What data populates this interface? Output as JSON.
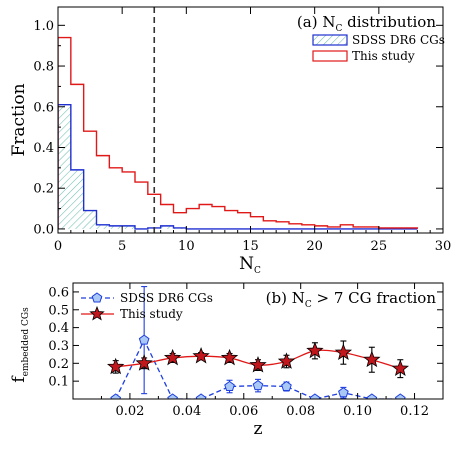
{
  "chart_data": [
    {
      "type": "bar",
      "panel_label": "(a)",
      "title": "N",
      "title_sub": "C",
      "title_rest": " distribution",
      "xlabel": "N",
      "xlabel_sub": "C",
      "ylabel": "Fraction",
      "xlim": [
        0,
        30
      ],
      "ylim": [
        -0.02,
        1.09
      ],
      "xticks": [
        0,
        5,
        10,
        15,
        20,
        25,
        30
      ],
      "yticks": [
        0.0,
        0.2,
        0.4,
        0.6,
        0.8,
        1.0
      ],
      "ytick_labels": [
        "0.0",
        "0.2",
        "0.4",
        "0.6",
        "0.8",
        "1.0"
      ],
      "vline": 7.5,
      "bin_edges": [
        0,
        1,
        2,
        3,
        4,
        5,
        6,
        7,
        8,
        9,
        10,
        11,
        12,
        13,
        14,
        15,
        16,
        17,
        18,
        19,
        20,
        21,
        22,
        23,
        24,
        25,
        26,
        27,
        28
      ],
      "series": [
        {
          "name": "SDSS DR6 CGs",
          "color": "#1f2fd0",
          "hatch_color": "#6fbfb0",
          "style": "hatched-step",
          "values": [
            0.61,
            0.29,
            0.09,
            0.02,
            0.015,
            0.015,
            0.0,
            0.005,
            0.015,
            0.005,
            0.0,
            0.0,
            0.0,
            0.0,
            0.0,
            0.0,
            0.0,
            0.0,
            0.0,
            0.0,
            0.0,
            0.0,
            0.0,
            0.0,
            0.0,
            0.0,
            0.0,
            0.0
          ]
        },
        {
          "name": "This study",
          "color": "#e01818",
          "style": "step",
          "values": [
            0.94,
            0.71,
            0.48,
            0.36,
            0.3,
            0.28,
            0.23,
            0.17,
            0.12,
            0.08,
            0.1,
            0.12,
            0.11,
            0.09,
            0.08,
            0.06,
            0.04,
            0.035,
            0.025,
            0.02,
            0.015,
            0.01,
            0.02,
            0.01,
            0.01,
            0.005,
            0.005,
            0.005
          ]
        }
      ]
    },
    {
      "type": "line",
      "panel_label": "(b)",
      "title": "N",
      "title_sub": "C",
      "title_rest": " > 7 CG fraction",
      "xlabel": "z",
      "ylabel": "f",
      "ylabel_sub": "embedded CGs",
      "xlim": [
        0.0,
        0.13
      ],
      "ylim": [
        0.0,
        0.65
      ],
      "xticks": [
        0.02,
        0.04,
        0.06,
        0.08,
        0.1,
        0.12
      ],
      "xtick_labels": [
        "0.02",
        "0.04",
        "0.06",
        "0.08",
        "0.10",
        "0.12"
      ],
      "yticks": [
        0.1,
        0.2,
        0.3,
        0.4,
        0.5,
        0.6
      ],
      "ytick_labels": [
        "0.1",
        "0.2",
        "0.3",
        "0.4",
        "0.5",
        "0.6"
      ],
      "series": [
        {
          "name": "SDSS DR6 CGs",
          "color": "#1f3fe0",
          "marker_fill": "#a9c8f5",
          "marker": "pentagon",
          "linestyle": "dashed",
          "x": [
            0.015,
            0.025,
            0.035,
            0.045,
            0.055,
            0.065,
            0.075,
            0.085,
            0.095,
            0.105,
            0.115
          ],
          "y": [
            0.0,
            0.33,
            0.0,
            0.0,
            0.07,
            0.075,
            0.07,
            0.0,
            0.035,
            0.0,
            0.0
          ],
          "err": [
            0.0,
            0.3,
            0.0,
            0.0,
            0.035,
            0.035,
            0.025,
            0.0,
            0.03,
            0.0,
            0.0
          ]
        },
        {
          "name": "This study",
          "color": "#e01818",
          "marker_fill": "#c0161c",
          "marker": "star",
          "linestyle": "solid",
          "x": [
            0.015,
            0.025,
            0.035,
            0.045,
            0.055,
            0.065,
            0.075,
            0.085,
            0.095,
            0.105,
            0.115
          ],
          "y": [
            0.18,
            0.2,
            0.23,
            0.24,
            0.23,
            0.19,
            0.21,
            0.27,
            0.26,
            0.22,
            0.17
          ],
          "err": [
            0.035,
            0.03,
            0.025,
            0.02,
            0.025,
            0.03,
            0.035,
            0.045,
            0.065,
            0.07,
            0.05
          ]
        }
      ]
    }
  ]
}
